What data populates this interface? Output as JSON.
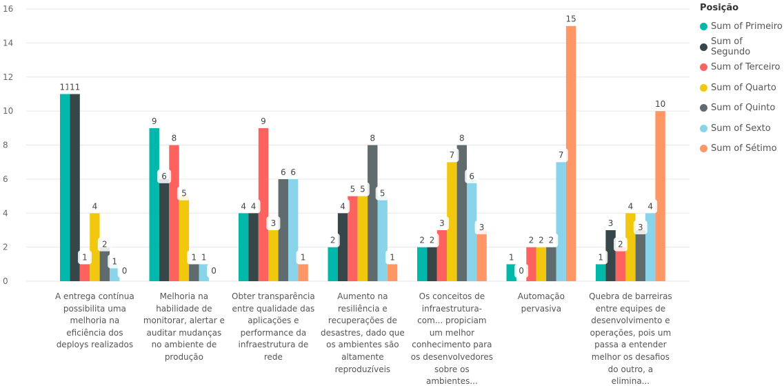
{
  "chart_data": {
    "type": "bar",
    "ylim": [
      0,
      16
    ],
    "yticks": [
      0,
      2,
      4,
      6,
      8,
      10,
      12,
      14,
      16
    ],
    "grid": true,
    "legend_position": "right",
    "legend_title": "Posição",
    "categories": [
      "A entrega contínua possibilita uma melhoria na eficiência dos deploys realizados",
      "Melhoria na habilidade de monitorar, alertar e auditar mudanças no ambiente de produção",
      "Obter transparência entre qualidade das aplicações e performance da infraestrutura de rede",
      "Aumento na resiliência e recuperações de desastres, dado que os ambientes são altamente reproduzíveis",
      "Os conceitos de infraestrutura-com... propiciam um melhor conhecimento para os desenvolvedores sobre os ambientes...",
      "Automação pervasiva",
      "Quebra de barreiras entre equipes de desenvolvimento e operações, pois um passa a entender melhor os desafios do outro, a elimina..."
    ],
    "series": [
      {
        "name": "Sum of Primeiro",
        "color": "#01B8AA",
        "values": [
          11,
          9,
          4,
          2,
          2,
          1,
          1
        ]
      },
      {
        "name": "Sum of Segundo",
        "color": "#374649",
        "values": [
          11,
          6,
          4,
          4,
          2,
          0,
          3
        ]
      },
      {
        "name": "Sum of Terceiro",
        "color": "#FD625E",
        "values": [
          1,
          8,
          9,
          5,
          3,
          2,
          2
        ]
      },
      {
        "name": "Sum of Quarto",
        "color": "#F2C80F",
        "values": [
          4,
          5,
          3,
          5,
          7,
          2,
          4
        ]
      },
      {
        "name": "Sum of Quinto",
        "color": "#5F6B6D",
        "values": [
          2,
          1,
          6,
          8,
          8,
          2,
          3
        ]
      },
      {
        "name": "Sum of Sexto",
        "color": "#8AD4EB",
        "values": [
          1,
          1,
          6,
          5,
          6,
          7,
          4
        ]
      },
      {
        "name": "Sum of Sétimo",
        "color": "#FE9666",
        "values": [
          0,
          0,
          1,
          1,
          3,
          15,
          10
        ]
      }
    ]
  }
}
